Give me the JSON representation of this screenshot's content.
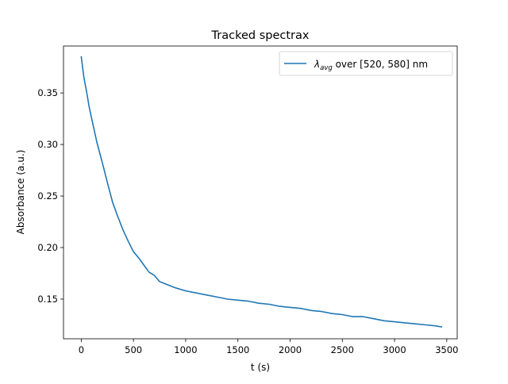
{
  "chart_data": {
    "type": "line",
    "title": "Tracked spectrax",
    "xlabel": "t (s)",
    "ylabel": "Absorbance (a.u.)",
    "xlim": [
      -170,
      3600
    ],
    "ylim": [
      0.1115,
      0.3955
    ],
    "x_ticks": [
      0,
      500,
      1000,
      1500,
      2000,
      2500,
      3000,
      3500
    ],
    "x_tick_labels": [
      "0",
      "500",
      "1000",
      "1500",
      "2000",
      "2500",
      "3000",
      "3500"
    ],
    "y_ticks": [
      0.15,
      0.2,
      0.25,
      0.3,
      0.35
    ],
    "y_tick_labels": [
      "0.15",
      "0.20",
      "0.25",
      "0.30",
      "0.35"
    ],
    "grid": false,
    "legend": {
      "position": "top-right",
      "entries": [
        {
          "symbol": "λ",
          "sub": "avg",
          "rest": " over [520, 580] nm"
        }
      ]
    },
    "series": [
      {
        "name": "λavg over [520, 580] nm",
        "color": "#1f77b4",
        "x": [
          0,
          25,
          50,
          75,
          100,
          150,
          200,
          250,
          300,
          350,
          400,
          450,
          500,
          550,
          600,
          650,
          700,
          750,
          800,
          900,
          1000,
          1100,
          1200,
          1300,
          1400,
          1500,
          1600,
          1700,
          1800,
          1900,
          2000,
          2100,
          2200,
          2300,
          2400,
          2500,
          2600,
          2700,
          2800,
          2900,
          3000,
          3100,
          3200,
          3300,
          3400,
          3450
        ],
        "y": [
          0.385,
          0.365,
          0.352,
          0.337,
          0.325,
          0.302,
          0.283,
          0.263,
          0.244,
          0.23,
          0.217,
          0.206,
          0.196,
          0.19,
          0.183,
          0.176,
          0.173,
          0.167,
          0.165,
          0.161,
          0.158,
          0.156,
          0.154,
          0.152,
          0.15,
          0.149,
          0.148,
          0.146,
          0.145,
          0.143,
          0.142,
          0.141,
          0.139,
          0.138,
          0.136,
          0.135,
          0.133,
          0.133,
          0.131,
          0.129,
          0.128,
          0.127,
          0.126,
          0.125,
          0.124,
          0.123
        ]
      }
    ]
  }
}
